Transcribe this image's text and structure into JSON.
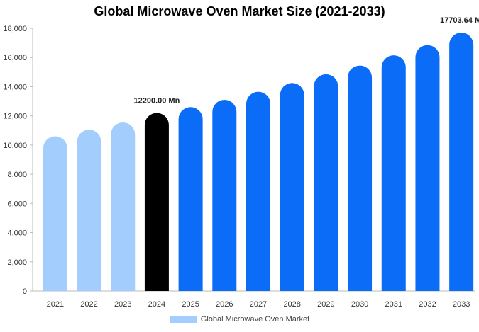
{
  "chart_data": {
    "type": "bar",
    "title": "Global Microwave Oven Market Size (2021-2033)",
    "xlabel": "",
    "ylabel": "",
    "ylim": [
      0,
      18000
    ],
    "y_ticks": [
      "0",
      "2,000",
      "4,000",
      "6,000",
      "8,000",
      "10,000",
      "12,000",
      "14,000",
      "16,000",
      "18,000"
    ],
    "categories": [
      "2021",
      "2022",
      "2023",
      "2024",
      "2025",
      "2026",
      "2027",
      "2028",
      "2029",
      "2030",
      "2031",
      "2032",
      "2033"
    ],
    "series": [
      {
        "name": "Global Microwave Oven Market",
        "values": [
          10600,
          11050,
          11550,
          12200,
          12600,
          13100,
          13650,
          14250,
          14850,
          15450,
          16150,
          16850,
          17703.64
        ]
      }
    ],
    "bar_colors": [
      "#a3cdfc",
      "#a3cdfc",
      "#a3cdfc",
      "#000000",
      "#0a6cf7",
      "#0a6cf7",
      "#0a6cf7",
      "#0a6cf7",
      "#0a6cf7",
      "#0a6cf7",
      "#0a6cf7",
      "#0a6cf7",
      "#0a6cf7"
    ],
    "annotations": [
      {
        "category": "2024",
        "text": "12200.00 Mn"
      },
      {
        "category": "2033",
        "text": "17703.64 M"
      }
    ],
    "grid": false,
    "legend_position": "bottom-center"
  }
}
